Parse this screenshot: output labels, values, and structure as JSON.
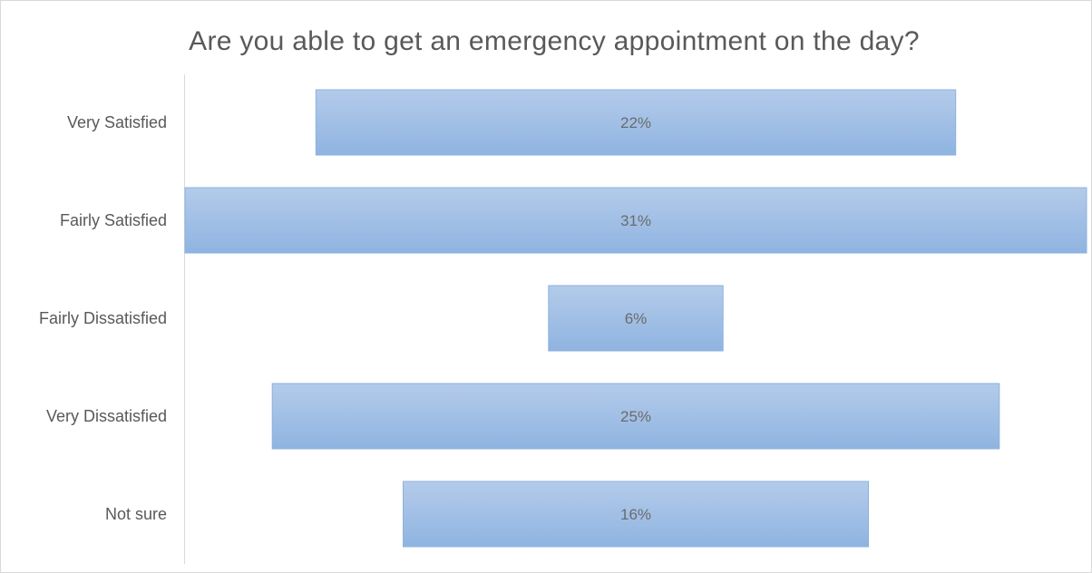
{
  "chart_data": {
    "type": "bar",
    "orientation": "horizontal",
    "style": "funnel",
    "title": "Are you able to get an emergency appointment on the day?",
    "categories": [
      "Very Satisfied",
      "Fairly Satisfied",
      "Fairly Dissatisfied",
      "Very Dissatisfied",
      "Not sure"
    ],
    "values": [
      22,
      31,
      6,
      25,
      16
    ],
    "value_labels": [
      "22%",
      "31%",
      "6%",
      "25%",
      "16%"
    ],
    "unit": "%",
    "grid": false,
    "legend": "none",
    "colors": {
      "bar_top": "#b4cbea",
      "bar_bottom": "#8fb4e1",
      "bar_border": "#8db2df",
      "text": "#595959",
      "axis": "#d9d9d9"
    }
  }
}
